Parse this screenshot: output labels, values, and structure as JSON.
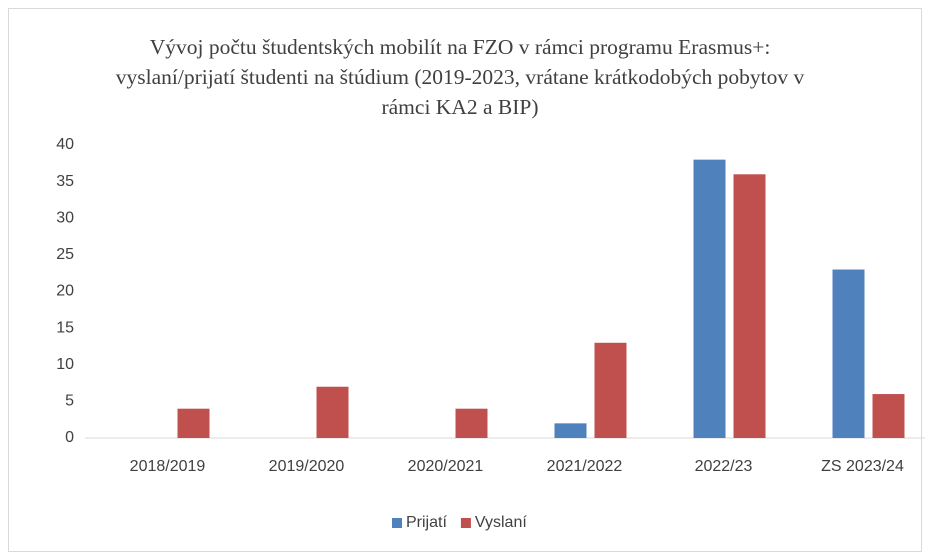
{
  "chart_data": {
    "type": "bar",
    "title": "Vývoj  počtu študentských  mobilít  na FZO v rámci programu Erasmus+: vyslaní/prijatí študenti na štúdium (2019-2023, vrátane krátkodobých pobytov v rámci KA2 a BIP)",
    "categories": [
      "2018/2019",
      "2019/2020",
      "2020/2021",
      "2021/2022",
      "2022/23",
      "ZS 2023/24"
    ],
    "series": [
      {
        "name": "Prijatí",
        "color": "#4f81bd",
        "values": [
          0,
          0,
          0,
          2,
          38,
          23
        ]
      },
      {
        "name": "Vyslaní",
        "color": "#c0504d",
        "values": [
          4,
          7,
          4,
          13,
          36,
          6
        ]
      }
    ],
    "ylim": [
      0,
      40
    ],
    "yticks": [
      0,
      5,
      10,
      15,
      20,
      25,
      30,
      35,
      40
    ],
    "grid": false,
    "legend": "bottom"
  }
}
